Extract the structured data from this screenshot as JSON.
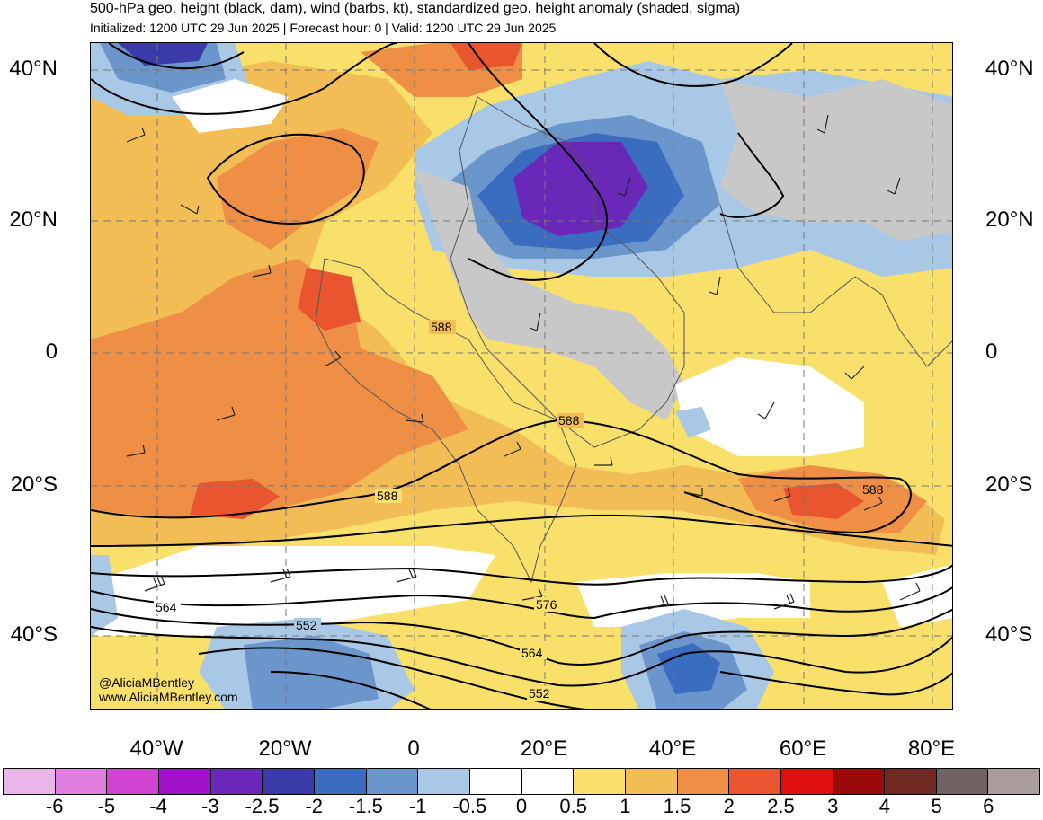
{
  "header": {
    "title": "500-hPa geo. height (black, dam), wind (barbs, kt), standardized geo. height anomaly (shaded, sigma)",
    "subtitle": "Initialized: 1200 UTC 29 Jun 2025 | Forecast hour: 0 | Valid: 1200 UTC 29 Jun 2025"
  },
  "axes": {
    "lat_left": [
      "40°N",
      "20°N",
      "0",
      "20°S",
      "40°S"
    ],
    "lat_right": [
      "40°N",
      "20°N",
      "0",
      "20°S",
      "40°S"
    ],
    "lon": [
      "40°W",
      "20°W",
      "0",
      "20°E",
      "40°E",
      "60°E",
      "80°E"
    ]
  },
  "contour_labels": [
    "588",
    "588",
    "588",
    "588",
    "576",
    "564",
    "552",
    "564",
    "552"
  ],
  "credits": {
    "handle": "@AliciaMBentley",
    "site": "www.AliciaMBentley.com"
  },
  "colorbar": {
    "labels": [
      "-6",
      "-5",
      "-4",
      "-3",
      "-2.5",
      "-2",
      "-1.5",
      "-1",
      "-0.5",
      "0",
      "0.5",
      "1",
      "1.5",
      "2",
      "2.5",
      "3",
      "4",
      "5",
      "6"
    ],
    "colors": [
      "#e8b6e8",
      "#e07fe0",
      "#d042d0",
      "#a010c8",
      "#6a28b8",
      "#3a3aa8",
      "#3a6cc0",
      "#6a96cc",
      "#a8c8e6",
      "#ffffff",
      "#ffffff",
      "#f9e06a",
      "#f2bd55",
      "#ee8f45",
      "#e8552e",
      "#e01010",
      "#9a0a0a",
      "#6e2a22",
      "#6e6262",
      "#a89c9c"
    ]
  }
}
